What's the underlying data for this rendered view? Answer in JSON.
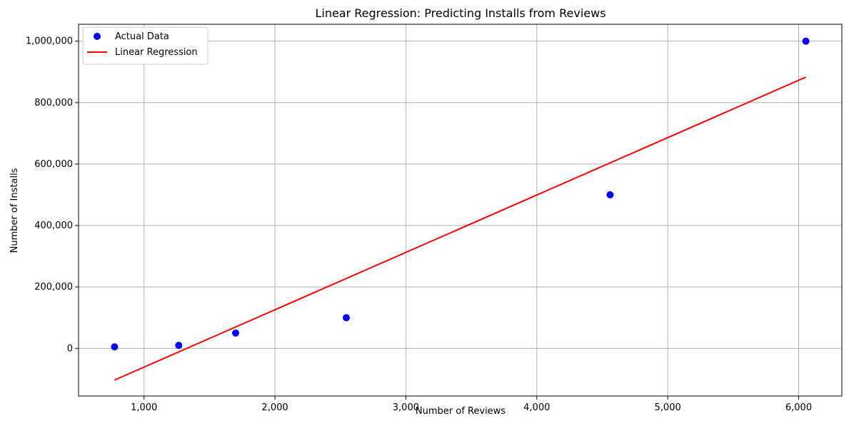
{
  "chart_data": {
    "type": "scatter",
    "title": "Linear Regression: Predicting Installs from Reviews",
    "xlabel": "Number of Reviews",
    "ylabel": "Number of Installs",
    "xlim": [
      500,
      6330
    ],
    "ylim": [
      -155000,
      1055000
    ],
    "x_ticks": [
      1000,
      2000,
      3000,
      4000,
      5000,
      6000
    ],
    "x_tick_labels": [
      "1,000",
      "2,000",
      "3,000",
      "4,000",
      "5,000",
      "6,000"
    ],
    "y_ticks": [
      0,
      200000,
      400000,
      600000,
      800000,
      1000000
    ],
    "y_tick_labels": [
      "0",
      "200,000",
      "400,000",
      "600,000",
      "800,000",
      "1,000,000"
    ],
    "grid": true,
    "legend_position": "top-left",
    "series": [
      {
        "name": "Actual Data",
        "kind": "scatter",
        "color": "#0000ff",
        "points": [
          {
            "x": 775,
            "y": 5000
          },
          {
            "x": 1265,
            "y": 10000
          },
          {
            "x": 1700,
            "y": 50000
          },
          {
            "x": 2545,
            "y": 100000
          },
          {
            "x": 4560,
            "y": 500000
          },
          {
            "x": 6055,
            "y": 1000000
          }
        ]
      },
      {
        "name": "Linear Regression",
        "kind": "line",
        "color": "#ff0000",
        "points": [
          {
            "x": 775,
            "y": -103000
          },
          {
            "x": 6055,
            "y": 883000
          }
        ]
      }
    ]
  }
}
